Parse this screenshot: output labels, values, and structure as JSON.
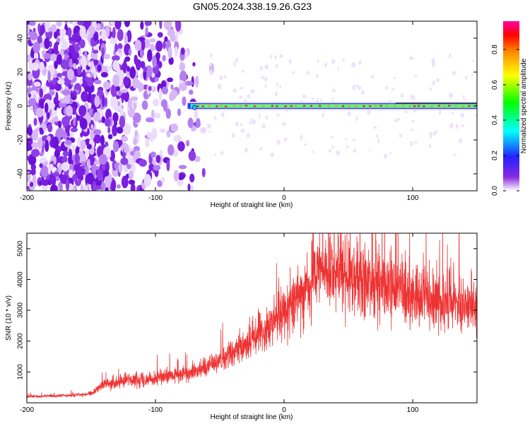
{
  "title": "GN05.2024.338.19.26.G23",
  "chart_data": [
    {
      "type": "heatmap",
      "xlabel": "Height of straight line (km)",
      "ylabel": "Frequency (Hz)",
      "xlim": [
        -200,
        150
      ],
      "ylim": [
        -50,
        50
      ],
      "x_ticks": [
        "-200",
        "-100",
        "0",
        "100"
      ],
      "y_ticks": [
        "-40",
        "-20",
        "0",
        "20",
        "40"
      ],
      "colorbar": {
        "label": "Normalized spectral amplitude",
        "range": [
          0,
          0.96
        ],
        "ticks": [
          "0.0",
          "0.2",
          "0.4",
          "0.6",
          "0.8"
        ]
      },
      "signal": {
        "description_x_start": -75,
        "frequency_hz": 0
      },
      "grid": false
    },
    {
      "type": "line",
      "xlabel": "Height of straight line (km)",
      "ylabel": "SNR (10 * v/v)",
      "xlim": [
        -200,
        150
      ],
      "ylim": [
        0,
        5500
      ],
      "x_ticks": [
        "-200",
        "-100",
        "0",
        "100"
      ],
      "y_ticks": [
        "1000",
        "2000",
        "3000",
        "4000",
        "5000"
      ],
      "series": [
        {
          "color": "#ee3333",
          "envelope_x": [
            -200,
            -160,
            -150,
            -140,
            -120,
            -100,
            -80,
            -60,
            -40,
            -20,
            0,
            20,
            30,
            40,
            60,
            80,
            100,
            120,
            150
          ],
          "envelope_y": [
            200,
            250,
            300,
            600,
            750,
            800,
            900,
            1200,
            1600,
            2200,
            3000,
            3900,
            4300,
            4300,
            4000,
            3700,
            3500,
            3300,
            3200
          ]
        }
      ],
      "grid": false
    }
  ]
}
